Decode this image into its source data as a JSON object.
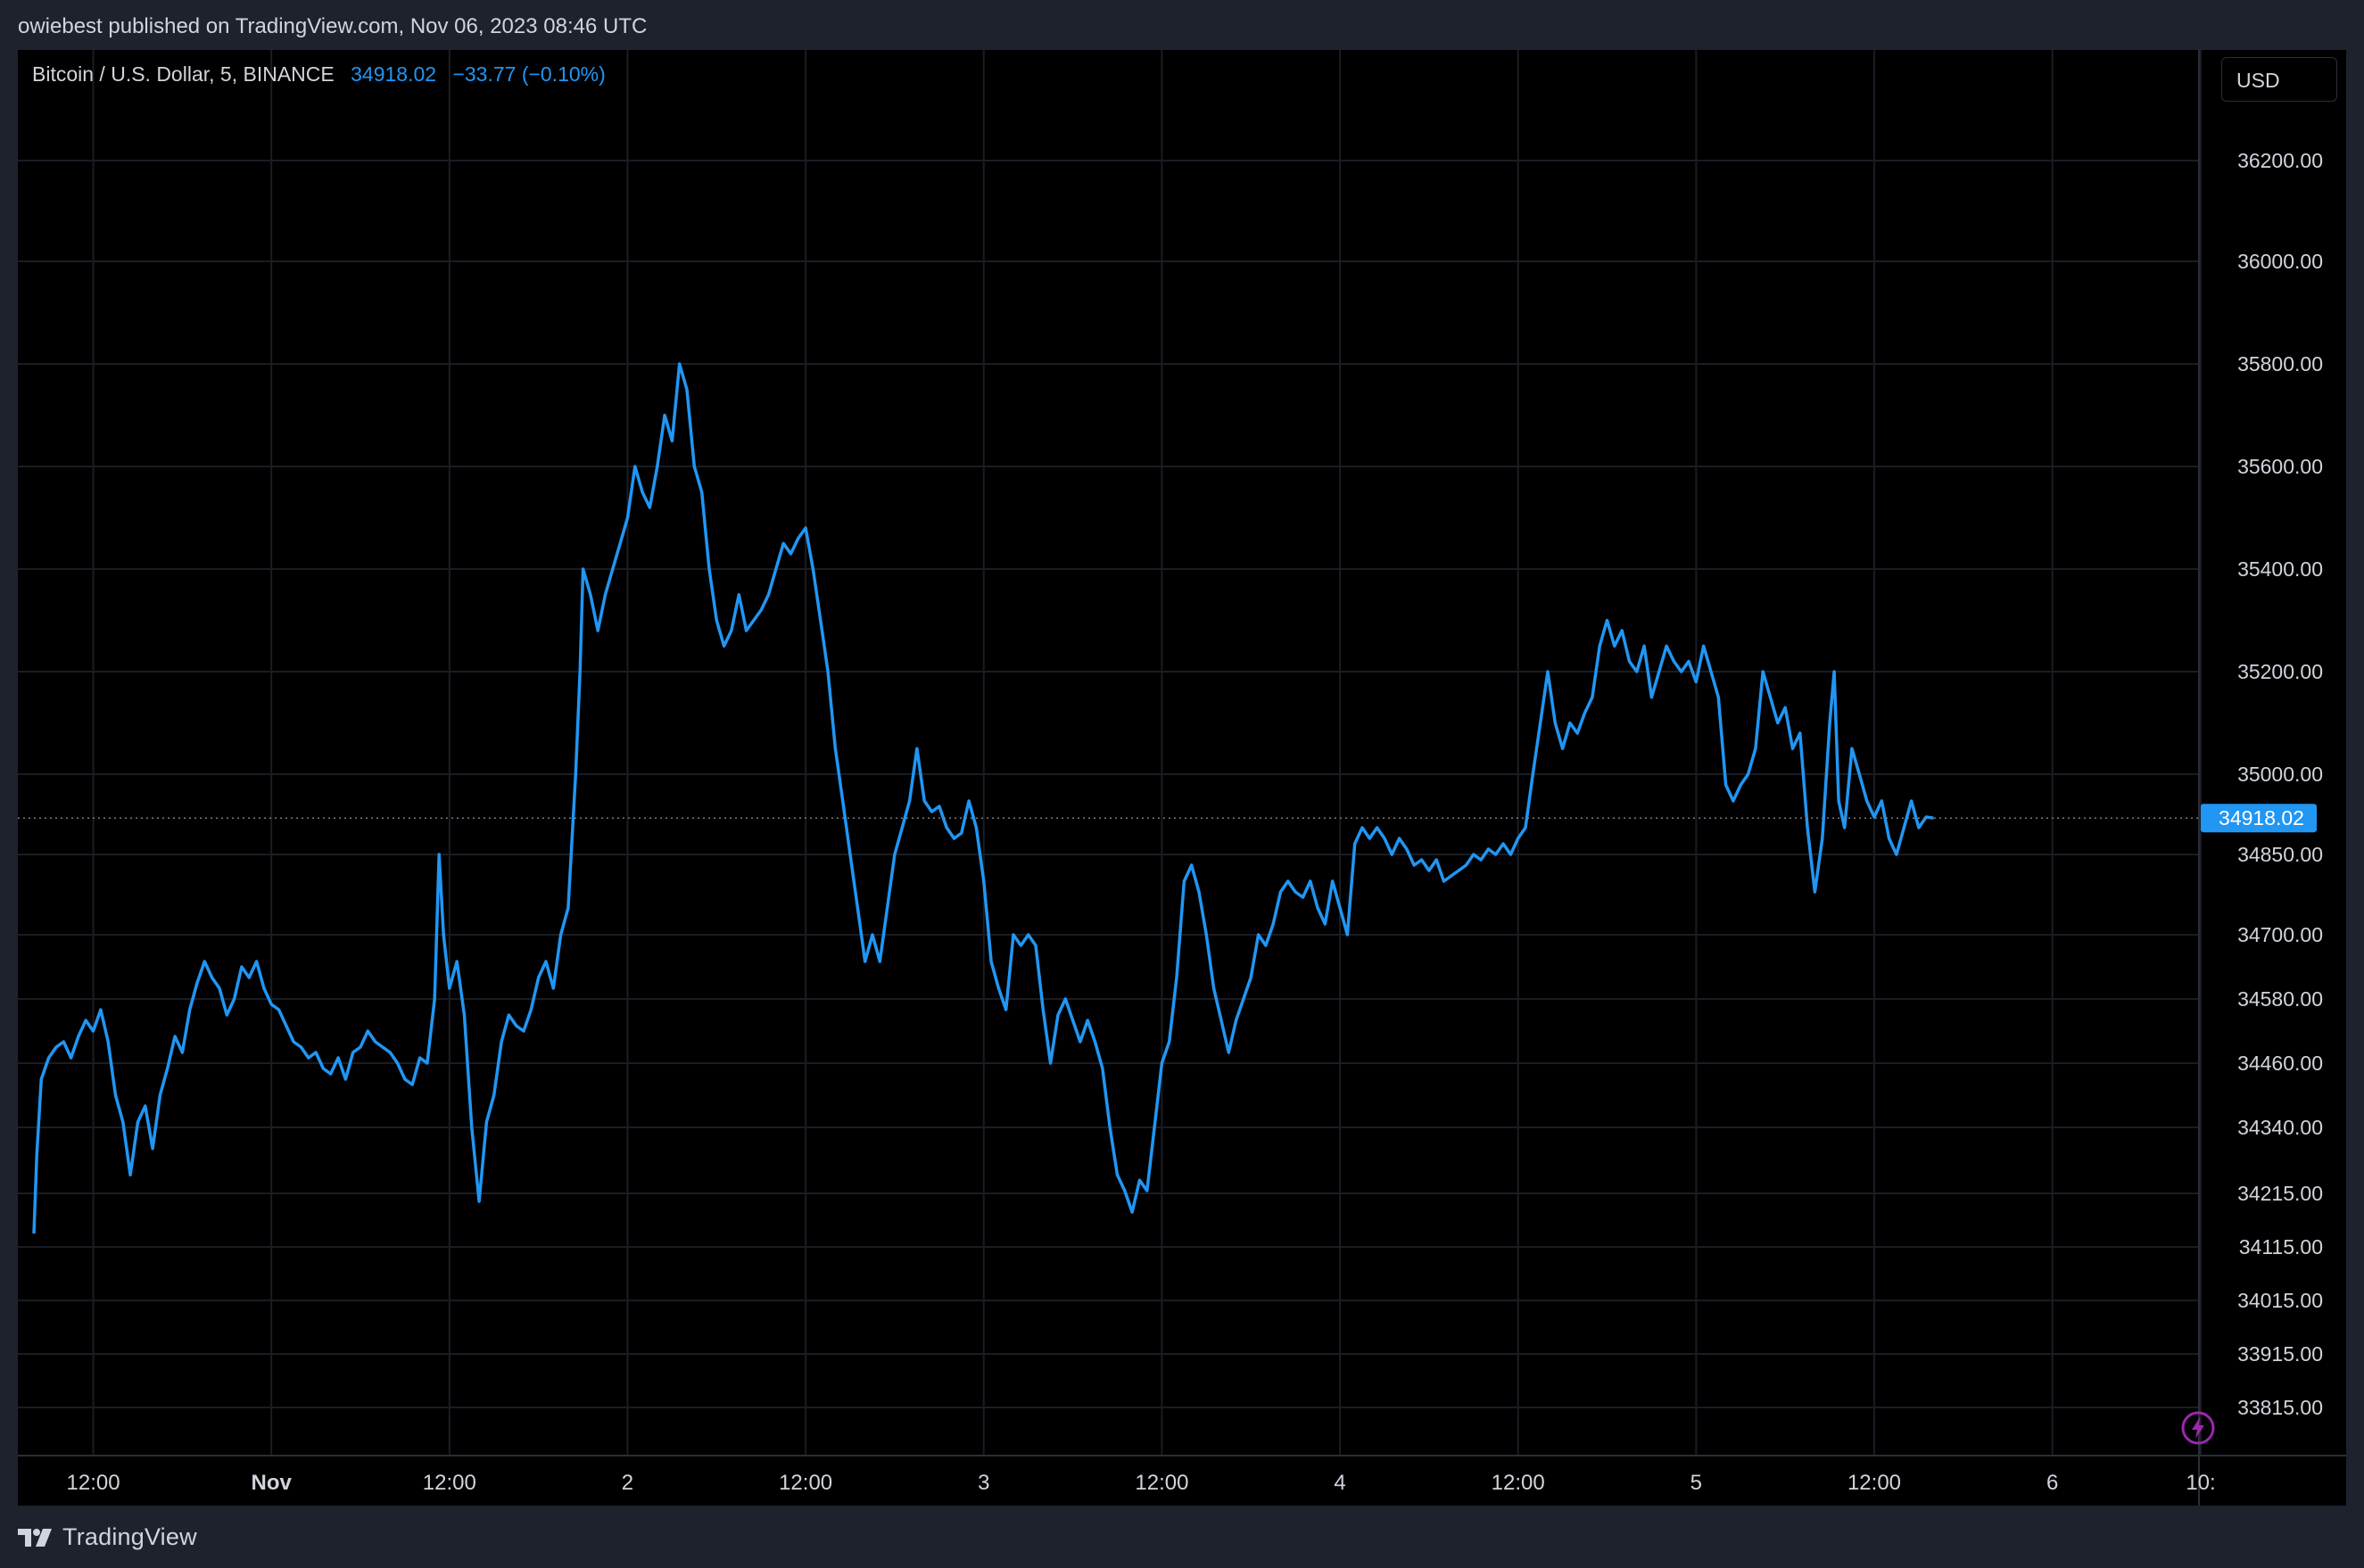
{
  "header": {
    "published": "owiebest published on TradingView.com, Nov 06, 2023 08:46 UTC"
  },
  "legend": {
    "symbol": "Bitcoin / U.S. Dollar, 5, BINANCE",
    "last": "34918.02",
    "change": "−33.77 (−0.10%)"
  },
  "currency_button": "USD",
  "footer": {
    "brand": "TradingView"
  },
  "colors": {
    "background": "#000000",
    "frame": "#1e222d",
    "line": "#2196f3",
    "text": "#d1d4dc",
    "grid": "#1a1d24"
  },
  "icons": {
    "logo": "tradingview-logo-icon",
    "bolt": "lightning-bolt-icon"
  },
  "chart_data": {
    "type": "line",
    "title": "",
    "ylabel": "",
    "xlabel": "",
    "grid": true,
    "last_price_label": "34918.02",
    "y_ticks": [
      "36200.00",
      "36000.00",
      "35800.00",
      "35600.00",
      "35400.00",
      "35200.00",
      "35000.00",
      "34850.00",
      "34700.00",
      "34580.00",
      "34460.00",
      "34340.00",
      "34215.00",
      "34115.00",
      "34015.00",
      "33915.00",
      "33815.00"
    ],
    "x_ticks": [
      {
        "label": "12:00",
        "t": 12
      },
      {
        "label": "Nov",
        "t": 24
      },
      {
        "label": "12:00",
        "t": 36
      },
      {
        "label": "2",
        "t": 48
      },
      {
        "label": "12:00",
        "t": 60
      },
      {
        "label": "3",
        "t": 72
      },
      {
        "label": "12:00",
        "t": 84
      },
      {
        "label": "4",
        "t": 96
      },
      {
        "label": "12:00",
        "t": 108
      },
      {
        "label": "5",
        "t": 120
      },
      {
        "label": "12:00",
        "t": 132
      },
      {
        "label": "6",
        "t": 144
      },
      {
        "label": "10:",
        "t": 154
      }
    ],
    "x_unit": "hours from Oct 31 00:00",
    "series": [
      {
        "points": [
          [
            8.0,
            34140
          ],
          [
            8.2,
            34290
          ],
          [
            8.5,
            34430
          ],
          [
            9.0,
            34470
          ],
          [
            9.5,
            34490
          ],
          [
            10.0,
            34500
          ],
          [
            10.5,
            34470
          ],
          [
            11.0,
            34510
          ],
          [
            11.5,
            34540
          ],
          [
            12.0,
            34520
          ],
          [
            12.5,
            34560
          ],
          [
            13.0,
            34500
          ],
          [
            13.5,
            34400
          ],
          [
            14.0,
            34350
          ],
          [
            14.5,
            34250
          ],
          [
            15.0,
            34350
          ],
          [
            15.5,
            34380
          ],
          [
            16.0,
            34300
          ],
          [
            16.5,
            34400
          ],
          [
            17.0,
            34450
          ],
          [
            17.5,
            34510
          ],
          [
            18.0,
            34480
          ],
          [
            18.5,
            34560
          ],
          [
            19.0,
            34610
          ],
          [
            19.5,
            34650
          ],
          [
            20.0,
            34620
          ],
          [
            20.5,
            34600
          ],
          [
            21.0,
            34550
          ],
          [
            21.5,
            34580
          ],
          [
            22.0,
            34640
          ],
          [
            22.5,
            34620
          ],
          [
            23.0,
            34650
          ],
          [
            23.5,
            34600
          ],
          [
            24.0,
            34570
          ],
          [
            24.5,
            34560
          ],
          [
            25.0,
            34530
          ],
          [
            25.5,
            34500
          ],
          [
            26.0,
            34490
          ],
          [
            26.5,
            34470
          ],
          [
            27.0,
            34480
          ],
          [
            27.5,
            34450
          ],
          [
            28.0,
            34440
          ],
          [
            28.5,
            34470
          ],
          [
            29.0,
            34430
          ],
          [
            29.5,
            34480
          ],
          [
            30.0,
            34490
          ],
          [
            30.5,
            34520
          ],
          [
            31.0,
            34500
          ],
          [
            31.5,
            34490
          ],
          [
            32.0,
            34480
          ],
          [
            32.5,
            34460
          ],
          [
            33.0,
            34430
          ],
          [
            33.5,
            34420
          ],
          [
            34.0,
            34470
          ],
          [
            34.5,
            34460
          ],
          [
            35.0,
            34580
          ],
          [
            35.3,
            34850
          ],
          [
            35.6,
            34700
          ],
          [
            36.0,
            34600
          ],
          [
            36.5,
            34650
          ],
          [
            37.0,
            34550
          ],
          [
            37.5,
            34340
          ],
          [
            38.0,
            34200
          ],
          [
            38.5,
            34350
          ],
          [
            39.0,
            34400
          ],
          [
            39.5,
            34500
          ],
          [
            40.0,
            34550
          ],
          [
            40.5,
            34530
          ],
          [
            41.0,
            34520
          ],
          [
            41.5,
            34560
          ],
          [
            42.0,
            34620
          ],
          [
            42.5,
            34650
          ],
          [
            43.0,
            34600
          ],
          [
            43.5,
            34700
          ],
          [
            44.0,
            34750
          ],
          [
            44.5,
            35000
          ],
          [
            44.8,
            35200
          ],
          [
            45.0,
            35400
          ],
          [
            45.5,
            35350
          ],
          [
            46.0,
            35280
          ],
          [
            46.5,
            35350
          ],
          [
            47.0,
            35400
          ],
          [
            47.5,
            35450
          ],
          [
            48.0,
            35500
          ],
          [
            48.5,
            35600
          ],
          [
            49.0,
            35550
          ],
          [
            49.5,
            35520
          ],
          [
            50.0,
            35600
          ],
          [
            50.5,
            35700
          ],
          [
            51.0,
            35650
          ],
          [
            51.5,
            35800
          ],
          [
            52.0,
            35750
          ],
          [
            52.5,
            35600
          ],
          [
            53.0,
            35550
          ],
          [
            53.5,
            35400
          ],
          [
            54.0,
            35300
          ],
          [
            54.5,
            35250
          ],
          [
            55.0,
            35280
          ],
          [
            55.5,
            35350
          ],
          [
            56.0,
            35280
          ],
          [
            56.5,
            35300
          ],
          [
            57.0,
            35320
          ],
          [
            57.5,
            35350
          ],
          [
            58.0,
            35400
          ],
          [
            58.5,
            35450
          ],
          [
            59.0,
            35430
          ],
          [
            59.5,
            35460
          ],
          [
            60.0,
            35480
          ],
          [
            60.5,
            35400
          ],
          [
            61.0,
            35300
          ],
          [
            61.5,
            35200
          ],
          [
            62.0,
            35050
          ],
          [
            62.5,
            34950
          ],
          [
            63.0,
            34850
          ],
          [
            63.5,
            34750
          ],
          [
            64.0,
            34650
          ],
          [
            64.5,
            34700
          ],
          [
            65.0,
            34650
          ],
          [
            65.5,
            34750
          ],
          [
            66.0,
            34850
          ],
          [
            66.5,
            34900
          ],
          [
            67.0,
            34950
          ],
          [
            67.5,
            35050
          ],
          [
            68.0,
            34950
          ],
          [
            68.5,
            34930
          ],
          [
            69.0,
            34940
          ],
          [
            69.5,
            34900
          ],
          [
            70.0,
            34880
          ],
          [
            70.5,
            34890
          ],
          [
            71.0,
            34950
          ],
          [
            71.5,
            34900
          ],
          [
            72.0,
            34800
          ],
          [
            72.5,
            34650
          ],
          [
            73.0,
            34600
          ],
          [
            73.5,
            34560
          ],
          [
            74.0,
            34700
          ],
          [
            74.5,
            34680
          ],
          [
            75.0,
            34700
          ],
          [
            75.5,
            34680
          ],
          [
            76.0,
            34560
          ],
          [
            76.5,
            34460
          ],
          [
            77.0,
            34550
          ],
          [
            77.5,
            34580
          ],
          [
            78.0,
            34540
          ],
          [
            78.5,
            34500
          ],
          [
            79.0,
            34540
          ],
          [
            79.5,
            34500
          ],
          [
            80.0,
            34450
          ],
          [
            80.5,
            34340
          ],
          [
            81.0,
            34250
          ],
          [
            81.5,
            34220
          ],
          [
            82.0,
            34180
          ],
          [
            82.5,
            34240
          ],
          [
            83.0,
            34220
          ],
          [
            83.5,
            34340
          ],
          [
            84.0,
            34460
          ],
          [
            84.5,
            34500
          ],
          [
            85.0,
            34620
          ],
          [
            85.5,
            34800
          ],
          [
            86.0,
            34830
          ],
          [
            86.5,
            34780
          ],
          [
            87.0,
            34700
          ],
          [
            87.5,
            34600
          ],
          [
            88.0,
            34540
          ],
          [
            88.5,
            34480
          ],
          [
            89.0,
            34540
          ],
          [
            89.5,
            34580
          ],
          [
            90.0,
            34620
          ],
          [
            90.5,
            34700
          ],
          [
            91.0,
            34680
          ],
          [
            91.5,
            34720
          ],
          [
            92.0,
            34780
          ],
          [
            92.5,
            34800
          ],
          [
            93.0,
            34780
          ],
          [
            93.5,
            34770
          ],
          [
            94.0,
            34800
          ],
          [
            94.5,
            34750
          ],
          [
            95.0,
            34720
          ],
          [
            95.5,
            34800
          ],
          [
            96.0,
            34750
          ],
          [
            96.5,
            34700
          ],
          [
            97.0,
            34870
          ],
          [
            97.5,
            34900
          ],
          [
            98.0,
            34880
          ],
          [
            98.5,
            34900
          ],
          [
            99.0,
            34880
          ],
          [
            99.5,
            34850
          ],
          [
            100.0,
            34880
          ],
          [
            100.5,
            34860
          ],
          [
            101.0,
            34830
          ],
          [
            101.5,
            34840
          ],
          [
            102.0,
            34820
          ],
          [
            102.5,
            34840
          ],
          [
            103.0,
            34800
          ],
          [
            103.5,
            34810
          ],
          [
            104.0,
            34820
          ],
          [
            104.5,
            34830
          ],
          [
            105.0,
            34850
          ],
          [
            105.5,
            34840
          ],
          [
            106.0,
            34860
          ],
          [
            106.5,
            34850
          ],
          [
            107.0,
            34870
          ],
          [
            107.5,
            34850
          ],
          [
            108.0,
            34880
          ],
          [
            108.5,
            34900
          ],
          [
            109.0,
            35000
          ],
          [
            109.5,
            35100
          ],
          [
            110.0,
            35200
          ],
          [
            110.5,
            35100
          ],
          [
            111.0,
            35050
          ],
          [
            111.5,
            35100
          ],
          [
            112.0,
            35080
          ],
          [
            112.5,
            35120
          ],
          [
            113.0,
            35150
          ],
          [
            113.5,
            35250
          ],
          [
            114.0,
            35300
          ],
          [
            114.5,
            35250
          ],
          [
            115.0,
            35280
          ],
          [
            115.5,
            35220
          ],
          [
            116.0,
            35200
          ],
          [
            116.5,
            35250
          ],
          [
            117.0,
            35150
          ],
          [
            117.5,
            35200
          ],
          [
            118.0,
            35250
          ],
          [
            118.5,
            35220
          ],
          [
            119.0,
            35200
          ],
          [
            119.5,
            35220
          ],
          [
            120.0,
            35180
          ],
          [
            120.5,
            35250
          ],
          [
            121.0,
            35200
          ],
          [
            121.5,
            35150
          ],
          [
            122.0,
            34980
          ],
          [
            122.5,
            34950
          ],
          [
            123.0,
            34980
          ],
          [
            123.5,
            35000
          ],
          [
            124.0,
            35050
          ],
          [
            124.5,
            35200
          ],
          [
            125.0,
            35150
          ],
          [
            125.5,
            35100
          ],
          [
            126.0,
            35130
          ],
          [
            126.5,
            35050
          ],
          [
            127.0,
            35080
          ],
          [
            127.5,
            34900
          ],
          [
            128.0,
            34780
          ],
          [
            128.5,
            34880
          ],
          [
            129.0,
            35100
          ],
          [
            129.3,
            35200
          ],
          [
            129.6,
            34950
          ],
          [
            130.0,
            34900
          ],
          [
            130.5,
            35050
          ],
          [
            131.0,
            35000
          ],
          [
            131.5,
            34950
          ],
          [
            132.0,
            34920
          ],
          [
            132.5,
            34950
          ],
          [
            133.0,
            34880
          ],
          [
            133.5,
            34850
          ],
          [
            134.0,
            34900
          ],
          [
            134.5,
            34950
          ],
          [
            135.0,
            34900
          ],
          [
            135.5,
            34920
          ],
          [
            136.0,
            34918.02
          ]
        ]
      }
    ]
  }
}
